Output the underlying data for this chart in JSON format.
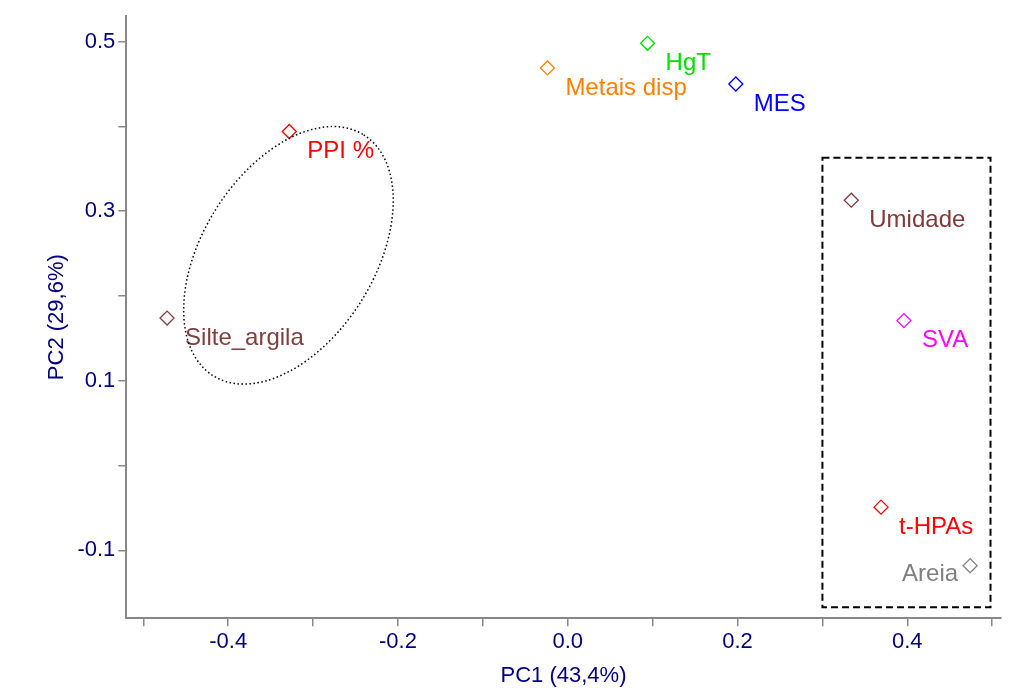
{
  "chart_data": {
    "type": "scatter",
    "xlabel": "PC1 (43,4%)",
    "ylabel": "PC2 (29,6%)",
    "marker": "diamond",
    "grid": false,
    "xlim": [
      -0.52,
      0.51
    ],
    "ylim": [
      -0.18,
      0.53
    ],
    "xticks": [
      {
        "value": -0.5,
        "label": null
      },
      -0.4,
      {
        "value": -0.3,
        "label": null
      },
      -0.2,
      {
        "value": -0.1,
        "label": null
      },
      {
        "value": 0,
        "label": "0.0"
      },
      {
        "value": 0.1,
        "label": null
      },
      0.2,
      {
        "value": 0.3,
        "label": null
      },
      0.4,
      {
        "value": 0.5,
        "label": null
      }
    ],
    "yticks": [
      {
        "value": -0.1,
        "label": "-0.1"
      },
      {
        "value": 0,
        "label": null
      },
      0.1,
      {
        "value": 0.2,
        "label": null
      },
      0.3,
      {
        "value": 0.4,
        "label": null
      },
      0.5
    ],
    "series": [
      {
        "name": "PPI %",
        "color": "#ff0000",
        "x": [
          -0.328
        ],
        "values": [
          0.394
        ]
      },
      {
        "name": "Silte_argila",
        "color": "#804040",
        "x": [
          -0.472
        ],
        "values": [
          0.174
        ]
      },
      {
        "name": "Metais disp",
        "color": "#ff8000",
        "x": [
          -0.024
        ],
        "values": [
          0.469
        ]
      },
      {
        "name": "HgT",
        "color": "#00e000",
        "x": [
          0.094
        ],
        "values": [
          0.498
        ]
      },
      {
        "name": "MES",
        "color": "#0000ff",
        "x": [
          0.198
        ],
        "values": [
          0.45
        ]
      },
      {
        "name": "Umidade",
        "color": "#803838",
        "x": [
          0.334
        ],
        "values": [
          0.313
        ]
      },
      {
        "name": "SVA",
        "color": "#ff00ff",
        "x": [
          0.396
        ],
        "values": [
          0.171
        ]
      },
      {
        "name": "t-HPAs",
        "color": "#ff0000",
        "x": [
          0.369
        ],
        "values": [
          -0.049
        ]
      },
      {
        "name": "Areia",
        "color": "#808080",
        "x": [
          0.474
        ],
        "values": [
          -0.118
        ]
      }
    ]
  }
}
